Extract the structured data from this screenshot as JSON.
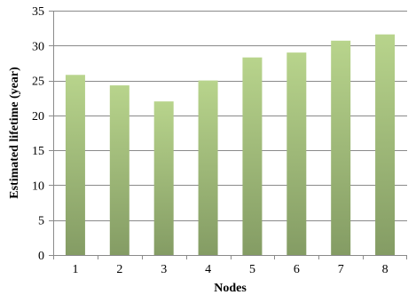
{
  "chart_data": {
    "type": "bar",
    "title": "",
    "xlabel": "Nodes",
    "ylabel": "Estimated lifetime (year)",
    "categories": [
      "1",
      "2",
      "3",
      "4",
      "5",
      "6",
      "7",
      "8"
    ],
    "series": [
      {
        "values": [
          25.8,
          24.3,
          22.0,
          25.0,
          28.3,
          29.0,
          30.7,
          31.6
        ]
      }
    ],
    "ylim": [
      0,
      35
    ],
    "yticks": [
      "0",
      "5",
      "10",
      "15",
      "20",
      "25",
      "30",
      "35"
    ],
    "grid": true,
    "legend": "none",
    "colors": {
      "bar_top": "#b8d48c",
      "bar_bottom": "#849c64",
      "grid": "#8a8a8a",
      "axis": "#8a8a8a"
    }
  }
}
